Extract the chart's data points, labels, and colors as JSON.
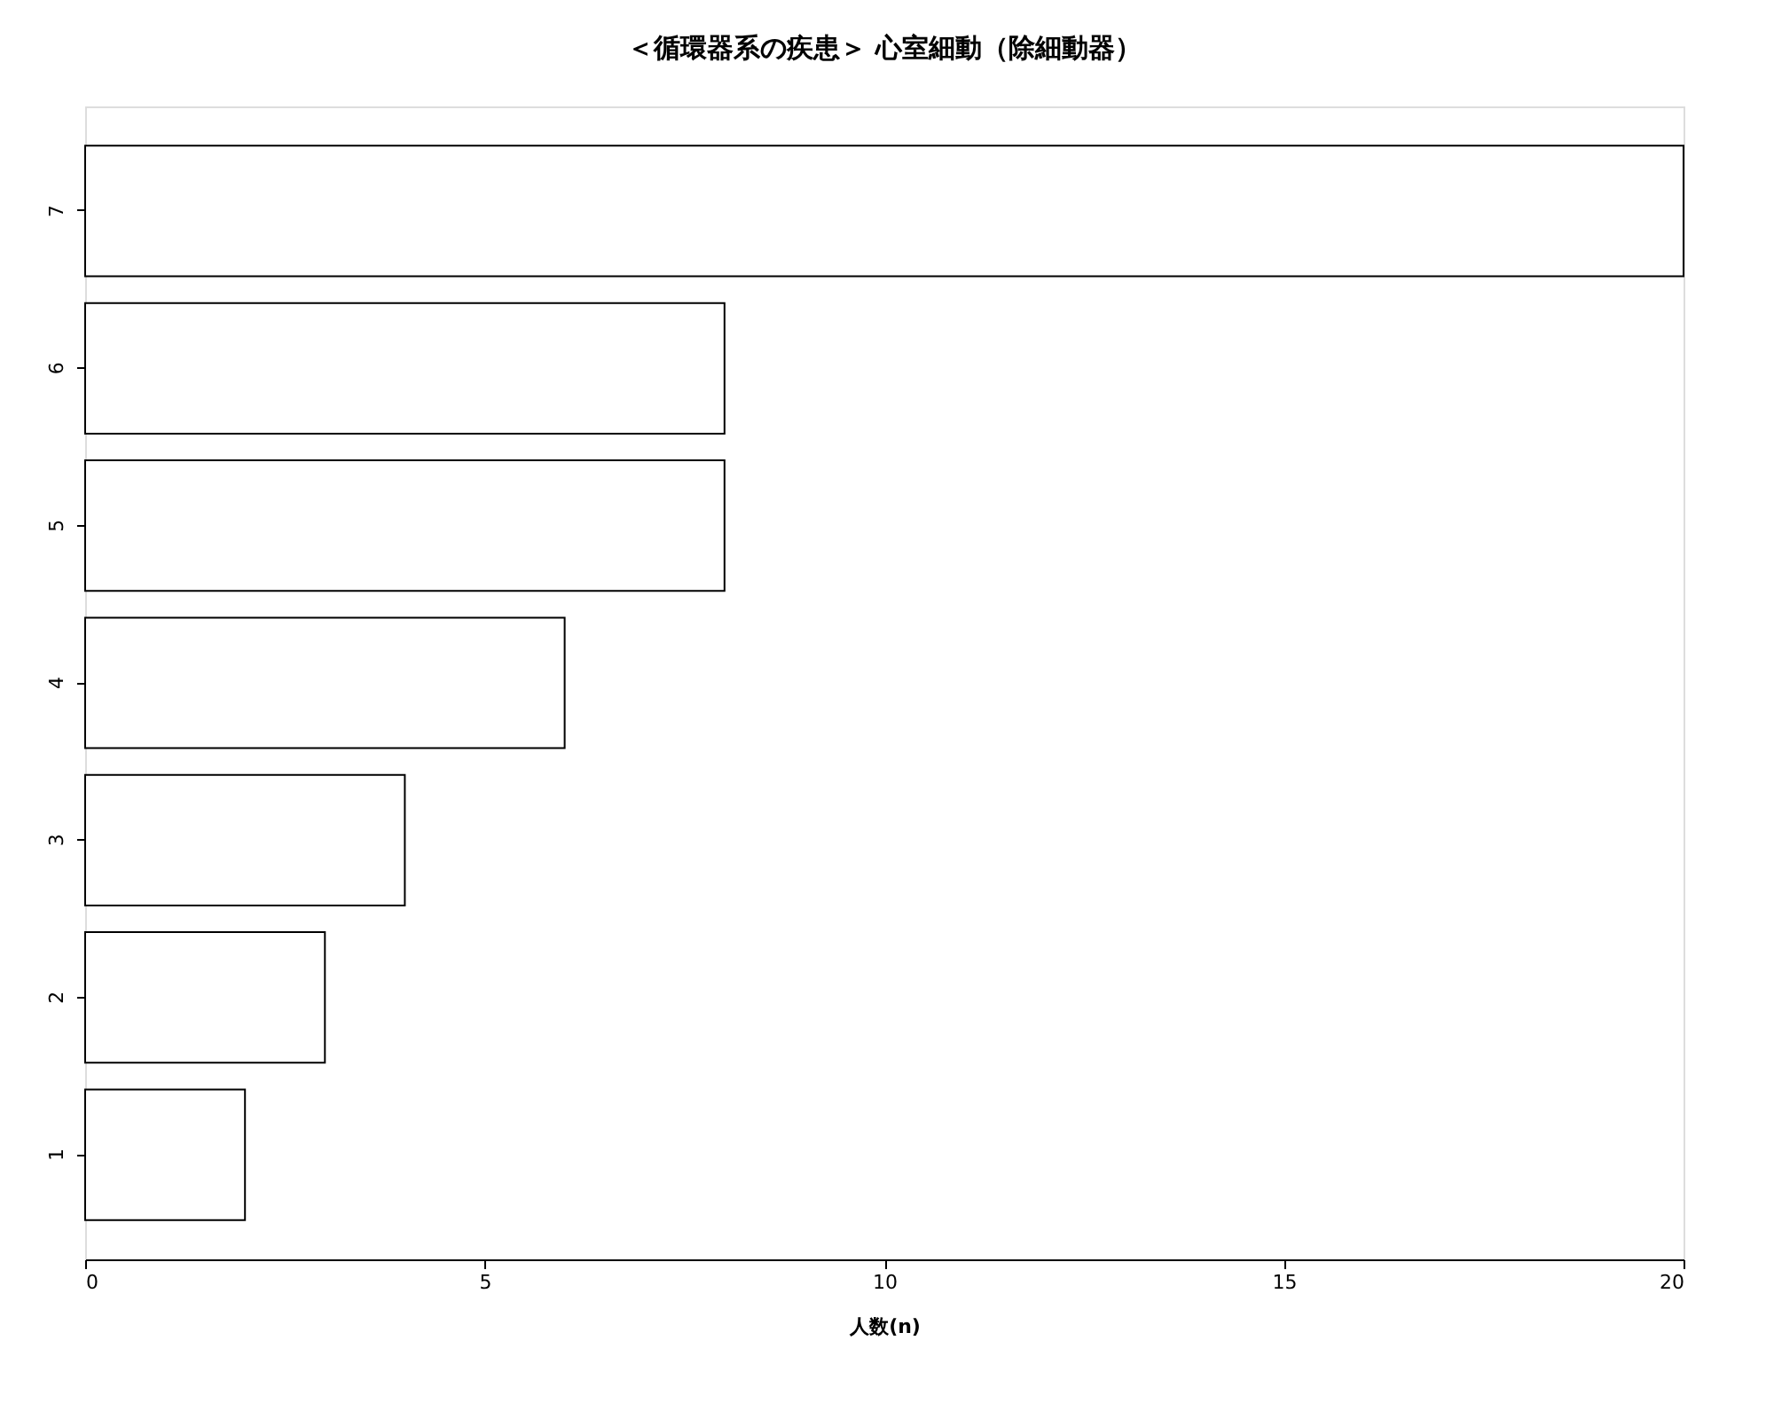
{
  "chart_data": {
    "type": "bar",
    "orientation": "horizontal",
    "title": "＜循環器系の疾患＞ 心室細動（除細動器）",
    "xlabel": "人数(n)",
    "categories": [
      "7",
      "6",
      "5",
      "4",
      "3",
      "2",
      "1"
    ],
    "values": [
      20,
      8,
      8,
      6,
      4,
      3,
      2
    ],
    "color": "#ffffff",
    "xlim": [
      0,
      20
    ],
    "xticks": [
      0,
      5,
      10,
      15,
      20
    ],
    "grid": false
  }
}
